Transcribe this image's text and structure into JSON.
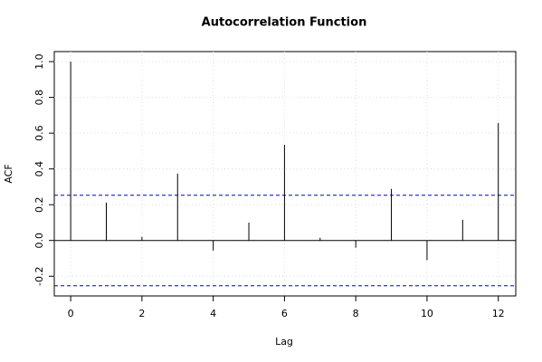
{
  "chart_data": {
    "type": "acf",
    "title": "Autocorrelation Function",
    "x_label": "Lag",
    "y_label": "ACF",
    "x": [
      0,
      1,
      2,
      3,
      4,
      5,
      6,
      7,
      8,
      9,
      10,
      11,
      12
    ],
    "values": [
      1.0,
      0.212,
      0.02,
      0.374,
      -0.056,
      0.1,
      0.535,
      0.015,
      -0.04,
      0.288,
      -0.11,
      0.116,
      0.657
    ],
    "color": "#000000",
    "confidence_bounds": [
      0.253,
      -0.253
    ],
    "confidence_color": "#0000cc",
    "xlim": [
      -0.46,
      12.49
    ],
    "xticks": [
      0,
      2,
      4,
      6,
      8,
      10,
      12
    ],
    "ylim": [
      -0.31,
      1.056
    ],
    "yticks": [
      -0.2,
      {
        "value": 0,
        "label": "0.0"
      },
      0.2,
      0.4,
      0.6,
      0.8,
      {
        "value": 1,
        "label": "1.0"
      }
    ],
    "grid": true
  }
}
